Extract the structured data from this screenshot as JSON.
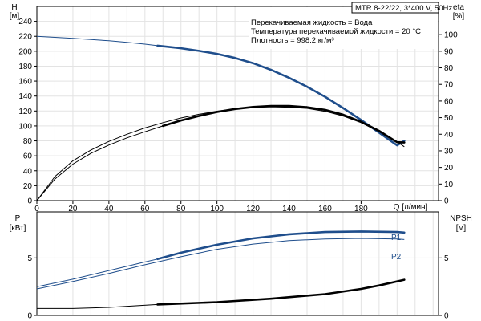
{
  "title_box": "MTR 8-22/22, 3*400 V, 50Hz",
  "info_lines": [
    "Перекачиваемая жидкость = Вода",
    "Температура перекачиваемой жидкости = 20 °C",
    "Плотность = 998.2 кг/м³"
  ],
  "colors": {
    "blue": "#1f4e8c",
    "black": "#000000",
    "grid": "#e3e3e3"
  },
  "chart_data": [
    {
      "type": "line",
      "title": "",
      "y_label": [
        "H",
        "[м]"
      ],
      "y_ticks": [
        0,
        20,
        40,
        60,
        80,
        100,
        120,
        140,
        160,
        180,
        200,
        220,
        240
      ],
      "ylim": [
        0,
        260
      ],
      "y2_label": [
        "eta",
        "[%]"
      ],
      "y2_ticks": [
        0,
        10,
        20,
        30,
        40,
        50,
        60,
        70,
        80,
        90,
        100
      ],
      "y2lim": [
        0,
        117
      ],
      "x_label": "Q [л/мин]",
      "x_ticks": [
        0,
        20,
        40,
        60,
        80,
        100,
        120,
        140,
        160,
        180
      ],
      "xlim": [
        0,
        223
      ],
      "grid": true,
      "series": [
        {
          "key": "H",
          "axis": "left",
          "color": "#1f4e8c",
          "x": [
            0,
            10,
            20,
            30,
            40,
            50,
            60,
            67,
            80,
            90,
            100,
            110,
            120,
            130,
            140,
            150,
            160,
            170,
            180,
            190,
            200,
            204
          ],
          "y": [
            220,
            218.6,
            217.2,
            215.6,
            214,
            212,
            209.5,
            207.5,
            204,
            200.5,
            196.5,
            191,
            184,
            175,
            164.5,
            152.5,
            139,
            124,
            108,
            91,
            74,
            80
          ],
          "bold_from_x": 67
        },
        {
          "key": "eta_a",
          "axis": "right",
          "color": "#000000",
          "x": [
            0,
            10,
            20,
            30,
            40,
            50,
            60,
            70,
            80,
            90,
            100,
            110,
            120,
            130,
            140,
            150,
            160,
            170,
            180,
            190,
            200,
            204
          ],
          "y": [
            0,
            13,
            22,
            28.5,
            33.5,
            37.8,
            41.5,
            45,
            48.3,
            51,
            53.4,
            55.2,
            56.4,
            57,
            57,
            56.3,
            54.7,
            51.8,
            47.5,
            42,
            35.2,
            35
          ],
          "bold_from_x": 67
        },
        {
          "key": "eta_b",
          "axis": "right",
          "color": "#000000",
          "x": [
            0,
            10,
            20,
            30,
            40,
            50,
            60,
            70,
            80,
            90,
            100,
            110,
            120,
            130,
            140,
            150,
            160,
            170,
            180,
            190,
            200,
            204
          ],
          "y": [
            0,
            14.5,
            24,
            30.5,
            35.7,
            40,
            43.8,
            47,
            49.8,
            52,
            53.9,
            55.3,
            56.2,
            56.5,
            56.3,
            55.6,
            53.8,
            51,
            47,
            41.5,
            35.5,
            32.5
          ],
          "bold_from_x": 999
        }
      ]
    },
    {
      "type": "line",
      "title": "",
      "y_label": [
        "P",
        "[кВт]"
      ],
      "y_ticks": [
        0,
        5
      ],
      "ylim": [
        0,
        9
      ],
      "y2_label": [
        "NPSH",
        "[м]"
      ],
      "y2_ticks": [
        0,
        5
      ],
      "y2lim": [
        0,
        9
      ],
      "xlim": [
        0,
        223
      ],
      "grid": true,
      "series": [
        {
          "key": "P1",
          "name": "P1",
          "axis": "left",
          "color": "#1f4e8c",
          "x": [
            0,
            20,
            40,
            60,
            67,
            80,
            100,
            120,
            140,
            160,
            180,
            200,
            204
          ],
          "y": [
            2.5,
            3.15,
            3.9,
            4.65,
            4.9,
            5.45,
            6.15,
            6.7,
            7.05,
            7.25,
            7.3,
            7.25,
            7.2
          ],
          "bold_from_x": 67
        },
        {
          "key": "P2",
          "name": "P2",
          "axis": "left",
          "color": "#1f4e8c",
          "x": [
            0,
            20,
            40,
            60,
            80,
            100,
            120,
            140,
            160,
            180,
            200,
            204
          ],
          "y": [
            2.3,
            2.95,
            3.65,
            4.4,
            5.1,
            5.75,
            6.2,
            6.5,
            6.65,
            6.7,
            6.65,
            6.6
          ],
          "bold_from_x": 999
        },
        {
          "key": "NPSH",
          "axis": "right",
          "color": "#000000",
          "x": [
            0,
            20,
            40,
            67,
            100,
            130,
            160,
            180,
            190,
            204
          ],
          "y": [
            0.6,
            0.6,
            0.7,
            0.95,
            1.15,
            1.45,
            1.85,
            2.3,
            2.6,
            3.1
          ],
          "bold_from_x": 67
        }
      ]
    }
  ]
}
